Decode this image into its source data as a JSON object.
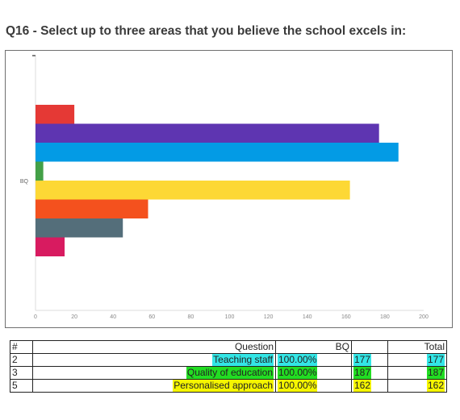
{
  "title": "Q16 - Select up to three areas that you believe the school excels in:",
  "chart_data": {
    "type": "bar",
    "orientation": "horizontal",
    "category_label": "BQ",
    "series": [
      {
        "values": [
          20
        ],
        "color": "#e53935"
      },
      {
        "values": [
          177
        ],
        "color": "#5e35b1"
      },
      {
        "values": [
          187
        ],
        "color": "#039be5"
      },
      {
        "values": [
          4
        ],
        "color": "#43a047"
      },
      {
        "values": [
          162
        ],
        "color": "#fdd835"
      },
      {
        "values": [
          58
        ],
        "color": "#f4511e"
      },
      {
        "values": [
          45
        ],
        "color": "#546e7a"
      },
      {
        "values": [
          15
        ],
        "color": "#d81b60"
      }
    ],
    "xlim": [
      0,
      200
    ],
    "xticks": [
      "0",
      "20",
      "40",
      "60",
      "80",
      "100",
      "120",
      "140",
      "160",
      "180",
      "200"
    ],
    "grid": false,
    "legend": "none"
  },
  "table": {
    "headers": {
      "num": "#",
      "question": "Question",
      "bq": "BQ",
      "count": "",
      "total": "Total"
    },
    "rows": [
      {
        "num": "2",
        "question": "Teaching staff",
        "bq": "100.00%",
        "count": "177",
        "total": "177",
        "color": "#33e6e6"
      },
      {
        "num": "3",
        "question": "Quality of education",
        "bq": "100.00%",
        "count": "187",
        "total": "187",
        "color": "#22dd22"
      },
      {
        "num": "5",
        "question": "Personalised approach",
        "bq": "100.00%",
        "count": "162",
        "total": "162",
        "color": "#f5f500"
      }
    ]
  }
}
